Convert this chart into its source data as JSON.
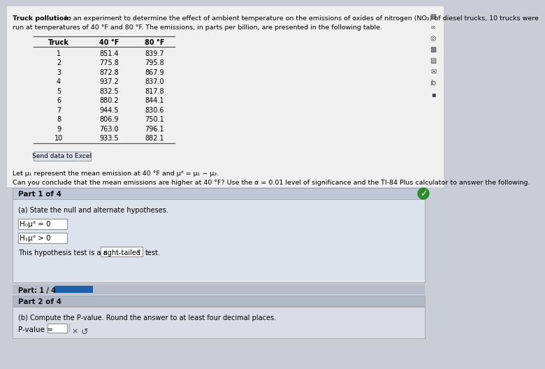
{
  "title_bold": "Truck pollution:",
  "title_rest": " In an experiment to determine the effect of ambient temperature on the emissions of oxides of nitrogen (NO₂) of diesel trucks, 10 trucks were",
  "title_line2": "run at temperatures of 40 °F and 80 °F. The emissions, in parts per billion, are presented in the following table.",
  "table_headers": [
    "Truck",
    "40 °F",
    "80 °F"
  ],
  "table_data": [
    [
      1,
      "851.4",
      "839.7"
    ],
    [
      2,
      "775.8",
      "795.8"
    ],
    [
      3,
      "872.8",
      "867.9"
    ],
    [
      4,
      "937.2",
      "837.0"
    ],
    [
      5,
      "832.5",
      "817.8"
    ],
    [
      6,
      "880.2",
      "844.1"
    ],
    [
      7,
      "944.5",
      "830.6"
    ],
    [
      8,
      "806.9",
      "750.1"
    ],
    [
      9,
      "763.0",
      "796.1"
    ],
    [
      10,
      "933.5",
      "882.1"
    ]
  ],
  "send_data_text": "Send data to Excel",
  "let_text": "Let μ₁ represent the mean emission at 40 °F and μᵈ = μ₁ − μ₂.",
  "can_text": "Can you conclude that the mean emissions are higher at 40 °F? Use the α = 0.01 level of significance and the TI-84 Plus calculator to answer the following.",
  "part1_header": "Part 1 of 4",
  "part1a_label": "(a) State the null and alternate hypotheses.",
  "hypothesis_type_pre": "This hypothesis test is a",
  "dropdown_text": "right-tailed",
  "test_text": "test.",
  "part_progress_label": "Part: 1 / 4",
  "part2_header": "Part 2 of 4",
  "part2b_label": "(b) Compute the P-value. Round the answer to at least four decimal places.",
  "pvalue_label": "P-value =",
  "bg_color": "#c8cdd6",
  "white_area_bg": "#f0f0f0",
  "part1_box_bg": "#dde3ec",
  "part1_header_bg": "#c0c8d8",
  "part_progress_bg": "#b8bec8",
  "part2_header_bg": "#b0b8c8",
  "part2_box_bg": "#d8dde8",
  "input_box_color": "#ffffff",
  "checkmark_bg": "#2e8b2e",
  "font_color": "#000000",
  "progress_bar_color": "#1e5faa",
  "table_line_color": "#555555",
  "btn_bg": "#dde3ec",
  "btn_border": "#999999",
  "dropdown_bg": "#ffffff",
  "dropdown_border": "#888888"
}
